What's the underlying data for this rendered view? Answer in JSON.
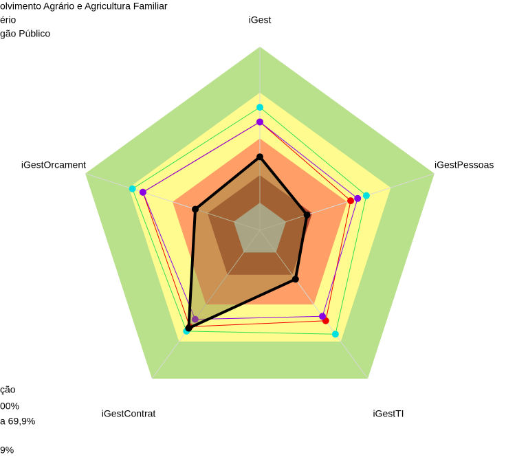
{
  "chart_data": {
    "type": "radar",
    "legend_top": [
      "olvimento Agrário e Agricultura Familiar",
      "ério",
      "gão Público"
    ],
    "legend_bottom": [
      "ção",
      "00%",
      "a 69,9%",
      "9%"
    ],
    "categories": [
      "iGest",
      "iGestPessoas",
      "iGestTI",
      "iGestContrat",
      "iGestOrcament"
    ],
    "ylim": [
      0,
      100
    ],
    "bands": [
      {
        "value": 100,
        "color": "#b9e08b"
      },
      {
        "value": 75,
        "color": "#fffb8f"
      },
      {
        "value": 50,
        "color": "#ff9e66"
      },
      {
        "value": 30,
        "color": "#b3452d"
      },
      {
        "value": 15,
        "color": "#c0c0c0"
      }
    ],
    "series": [
      {
        "color": "#00e0e0",
        "line_color": "#33dd55",
        "values": [
          67,
          61,
          70,
          68,
          73
        ]
      },
      {
        "color": "#ee0000",
        "line_color": "#ee0000",
        "values": [
          59,
          52,
          61,
          65,
          67
        ]
      },
      {
        "color": "#8a00e6",
        "line_color": "#8a00e6",
        "values": [
          59,
          56,
          58,
          60,
          67
        ]
      },
      {
        "color": "#000000",
        "line_color": "#000000",
        "values": [
          40,
          27,
          33,
          66,
          37
        ]
      }
    ]
  }
}
